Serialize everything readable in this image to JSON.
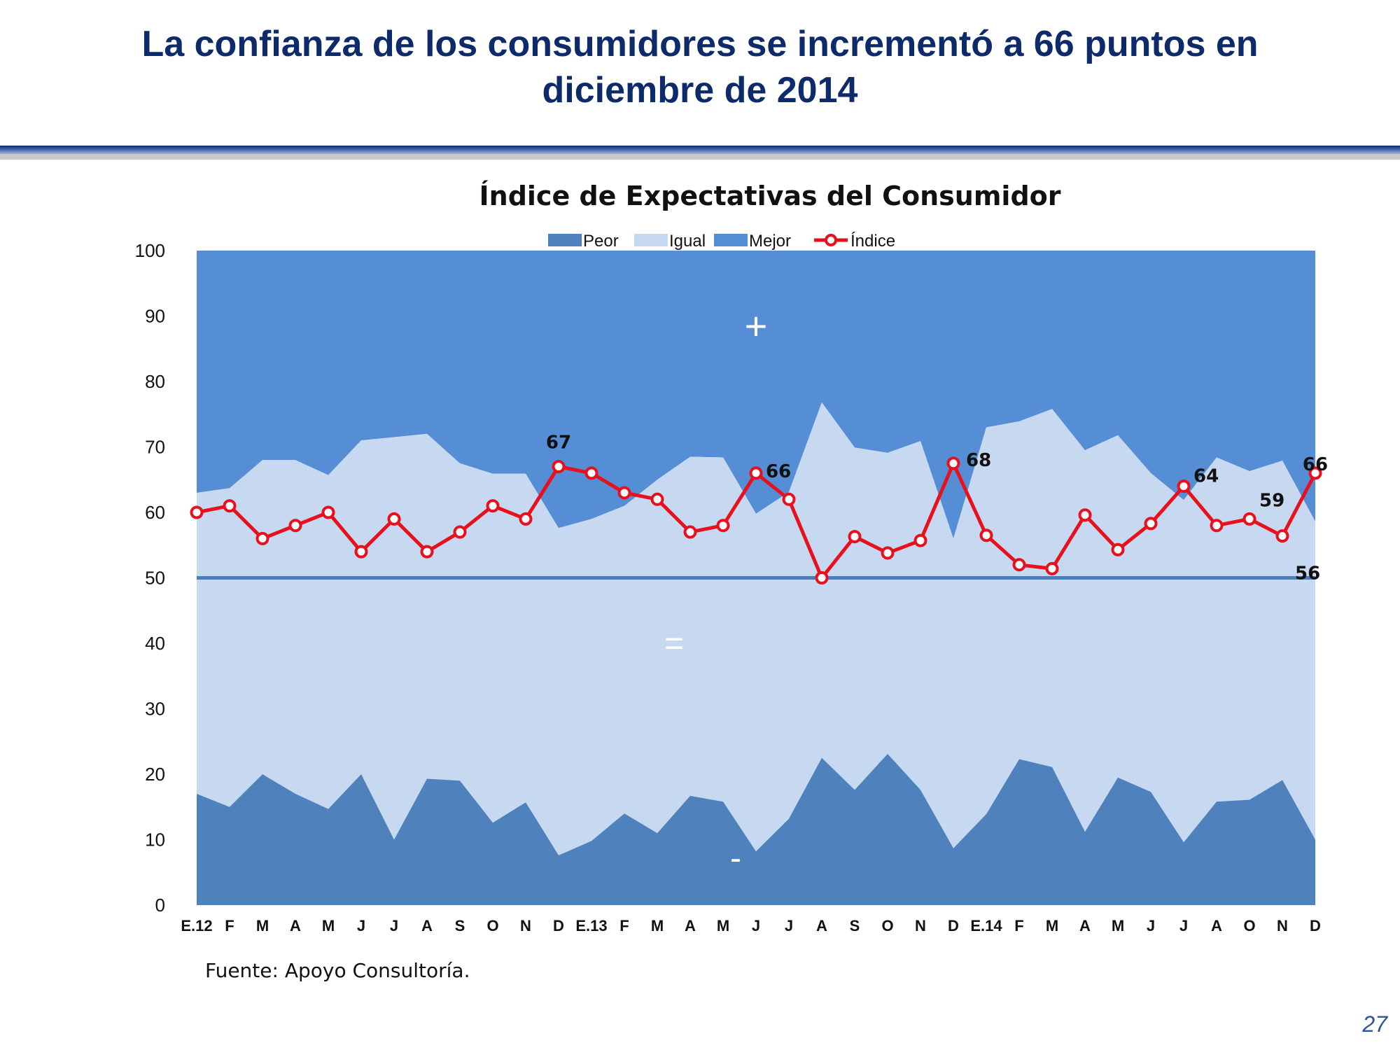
{
  "slide": {
    "title_line1": "La confianza de los consumidores se incrementó a 66 puntos en",
    "title_line2": "diciembre de 2014",
    "source": "Fuente: Apoyo Consultoría.",
    "page_number": "27"
  },
  "colors": {
    "title": "#0d2a6b",
    "peor": "#4f81bd",
    "igual": "#c6d9f1",
    "mejor": "#558ed5",
    "indice": "#e8101c",
    "reference_line": "#4a7ebb",
    "page_number": "#2f5597"
  },
  "chart_data": {
    "type": "area",
    "title": "Índice de Expectativas del Consumidor",
    "legend": [
      "Peor",
      "Igual",
      "Mejor",
      "Índice"
    ],
    "legend_position": "top-center",
    "grid": false,
    "ylim": [
      0,
      100
    ],
    "y_ticks": [
      0,
      10,
      20,
      30,
      40,
      50,
      60,
      70,
      80,
      90,
      100
    ],
    "reference_line": 50,
    "zone_labels": [
      "+",
      "=",
      "-"
    ],
    "categories": [
      "E.12",
      "F",
      "M",
      "A",
      "M",
      "J",
      "J",
      "A",
      "S",
      "O",
      "N",
      "D",
      "E.13",
      "F",
      "M",
      "A",
      "M",
      "J",
      "J",
      "A",
      "S",
      "O",
      "N",
      "D",
      "E.14",
      "F",
      "M",
      "A",
      "M",
      "J",
      "J",
      "A",
      "O",
      "N",
      "D"
    ],
    "series": [
      {
        "name": "Peor",
        "kind": "stacked-area",
        "values": [
          17,
          15,
          20,
          17,
          14.7,
          20,
          10,
          19.3,
          19,
          12.6,
          15.7,
          7.6,
          9.8,
          14,
          11,
          16.7,
          15.8,
          8.2,
          13.2,
          22.5,
          17.6,
          23.1,
          17.6,
          8.7,
          13.9,
          22.3,
          21.1,
          11.2,
          19.5,
          17.3,
          9.6,
          15.8,
          16.1,
          19.1,
          10
        ]
      },
      {
        "name": "Igual",
        "kind": "stacked-area",
        "values": [
          46,
          48.7,
          48,
          51,
          51,
          51,
          61.5,
          52.7,
          48.5,
          53.3,
          50.2,
          50,
          49.2,
          47,
          54,
          51.8,
          52.6,
          51.6,
          49.9,
          54.3,
          52.3,
          46,
          53.3,
          47.3,
          59.1,
          51.6,
          54.7,
          58.3,
          52.3,
          48.7,
          52.3,
          52.6,
          50.2,
          48.8,
          48.6
        ]
      },
      {
        "name": "Mejor",
        "kind": "stacked-area",
        "values": [
          37,
          36.3,
          32,
          32,
          34.3,
          29,
          28.5,
          28,
          32.5,
          34.1,
          34.1,
          42.4,
          41,
          39,
          35,
          31.5,
          31.6,
          40.2,
          36.9,
          23.2,
          30.1,
          30.9,
          29.1,
          44,
          27,
          26.1,
          24.2,
          30.5,
          28.2,
          34,
          38.1,
          31.6,
          33.7,
          32.1,
          41.4
        ]
      },
      {
        "name": "Índice",
        "kind": "line",
        "values": [
          60,
          61,
          56,
          58,
          60,
          54,
          59,
          54,
          57,
          61,
          59,
          67,
          66,
          63,
          62,
          57,
          58,
          66,
          62,
          50,
          56.3,
          53.8,
          55.7,
          67.5,
          56.5,
          52,
          51.4,
          59.6,
          54.3,
          58.3,
          64,
          58,
          59,
          56.4,
          66
        ]
      }
    ],
    "data_labels": [
      {
        "index": 11,
        "text": "67"
      },
      {
        "index": 17,
        "text": "66"
      },
      {
        "index": 23,
        "text": "68"
      },
      {
        "index": 30,
        "text": "64"
      },
      {
        "index": 32,
        "text": "59"
      },
      {
        "index": 33,
        "text": "56"
      },
      {
        "index": 34,
        "text": "66"
      }
    ]
  }
}
